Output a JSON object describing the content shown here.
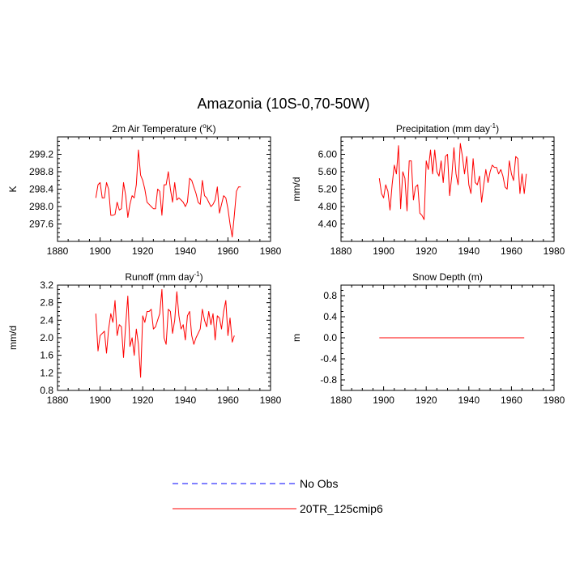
{
  "title": "Amazonia (10S-0,70-50W)",
  "line_color": "#ff0000",
  "obs_color": "#0000ff",
  "legend": [
    {
      "label": "No Obs",
      "style": "dashed",
      "color": "#0000ff"
    },
    {
      "label": "20TR_125cmip6",
      "style": "solid",
      "color": "#ff0000"
    }
  ],
  "chart_data": [
    {
      "type": "line",
      "title": "2m Air Temperature (°K)",
      "title_main": "2m Air Temperature (",
      "title_sup": "o",
      "title_tail": "K)",
      "xlabel": "",
      "ylabel": "K",
      "xlim": [
        1880,
        1980
      ],
      "ylim": [
        297.2,
        299.6
      ],
      "xticks": [
        "1880",
        "1900",
        "1920",
        "1940",
        "1960",
        "1980"
      ],
      "yticks": [
        "297.6",
        "298.0",
        "298.4",
        "298.8",
        "299.2"
      ],
      "series": [
        {
          "name": "20TR_125cmip6",
          "start": 1898,
          "values": [
            298.2,
            298.5,
            298.55,
            298.2,
            298.2,
            298.55,
            298.4,
            297.8,
            297.8,
            297.82,
            298.1,
            297.92,
            297.95,
            298.55,
            298.25,
            297.75,
            298.05,
            298.25,
            298.2,
            298.5,
            299.3,
            298.72,
            298.6,
            298.4,
            298.1,
            298.05,
            298.0,
            297.95,
            297.95,
            298.4,
            298.35,
            297.8,
            298.5,
            298.5,
            298.8,
            298.4,
            298.1,
            298.55,
            298.15,
            298.2,
            298.15,
            298.1,
            298.0,
            298.1,
            298.65,
            298.6,
            298.45,
            298.3,
            298.1,
            298.05,
            298.6,
            298.25,
            298.2,
            298.1,
            298.0,
            298.05,
            298.15,
            298.45,
            297.85,
            298.05,
            298.25,
            298.2,
            297.95,
            297.6,
            297.3,
            297.8,
            298.35,
            298.45,
            298.45
          ]
        }
      ]
    },
    {
      "type": "line",
      "title": "Precipitation (mm day-1)",
      "title_main": "Precipitation (mm day",
      "title_sup": "-1",
      "title_tail": ")",
      "xlabel": "",
      "ylabel": "mm/d",
      "xlim": [
        1880,
        1980
      ],
      "ylim": [
        4.0,
        6.4
      ],
      "xticks": [
        "1880",
        "1900",
        "1920",
        "1940",
        "1960",
        "1980"
      ],
      "yticks": [
        "4.40",
        "4.80",
        "5.20",
        "5.60",
        "6.00"
      ],
      "series": [
        {
          "name": "20TR_125cmip6",
          "start": 1898,
          "values": [
            5.45,
            5.1,
            5.0,
            5.3,
            5.15,
            4.72,
            5.3,
            5.75,
            5.55,
            6.2,
            4.75,
            5.6,
            5.45,
            4.7,
            5.85,
            5.85,
            4.95,
            5.25,
            5.3,
            4.65,
            4.6,
            4.5,
            5.85,
            5.65,
            6.1,
            5.55,
            6.1,
            5.6,
            5.5,
            5.85,
            5.35,
            5.95,
            6.0,
            5.05,
            5.5,
            6.15,
            5.55,
            5.3,
            6.25,
            5.95,
            5.55,
            5.95,
            5.3,
            5.1,
            5.9,
            5.35,
            5.3,
            5.5,
            4.9,
            5.3,
            5.65,
            5.35,
            5.6,
            5.75,
            5.7,
            5.7,
            5.55,
            5.65,
            5.5,
            5.25,
            5.2,
            5.85,
            5.55,
            5.4,
            5.95,
            5.9,
            5.1,
            5.55,
            5.1,
            5.55
          ]
        }
      ]
    },
    {
      "type": "line",
      "title": "Runoff (mm day-1)",
      "title_main": "Runoff (mm day",
      "title_sup": "-1",
      "title_tail": ")",
      "xlabel": "",
      "ylabel": "mm/d",
      "xlim": [
        1880,
        1980
      ],
      "ylim": [
        0.8,
        3.2
      ],
      "xticks": [
        "1880",
        "1900",
        "1920",
        "1940",
        "1960",
        "1980"
      ],
      "yticks": [
        "0.8",
        "1.2",
        "1.6",
        "2.0",
        "2.4",
        "2.8",
        "3.2"
      ],
      "series": [
        {
          "name": "20TR_125cmip6",
          "start": 1898,
          "values": [
            2.55,
            1.7,
            2.05,
            2.1,
            2.15,
            1.65,
            2.2,
            2.55,
            2.35,
            2.85,
            2.05,
            2.3,
            2.25,
            1.55,
            2.3,
            2.95,
            1.8,
            2.0,
            1.6,
            2.2,
            1.85,
            1.1,
            2.5,
            2.35,
            2.6,
            2.6,
            2.65,
            2.2,
            2.25,
            2.4,
            2.55,
            3.1,
            2.0,
            1.85,
            2.65,
            2.6,
            2.1,
            2.4,
            3.05,
            2.5,
            2.2,
            2.3,
            1.95,
            2.5,
            2.6,
            2.05,
            1.85,
            2.0,
            2.1,
            2.2,
            2.65,
            2.4,
            2.25,
            2.6,
            2.3,
            2.55,
            1.95,
            2.5,
            2.45,
            2.2,
            2.6,
            2.85,
            2.05,
            2.45,
            1.9,
            2.05
          ]
        }
      ]
    },
    {
      "type": "line",
      "title": "Snow Depth (m)",
      "title_main": "Snow Depth (m)",
      "title_sup": "",
      "title_tail": "",
      "xlabel": "",
      "ylabel": "m",
      "xlim": [
        1880,
        1980
      ],
      "ylim": [
        -1.0,
        1.0
      ],
      "xticks": [
        "1880",
        "1900",
        "1920",
        "1940",
        "1960",
        "1980"
      ],
      "yticks": [
        "-0.8",
        "-0.4",
        "0.0",
        "0.4",
        "0.8"
      ],
      "series": [
        {
          "name": "20TR_125cmip6",
          "start": 1898,
          "end": 1966,
          "constant": 0.0
        }
      ]
    }
  ]
}
